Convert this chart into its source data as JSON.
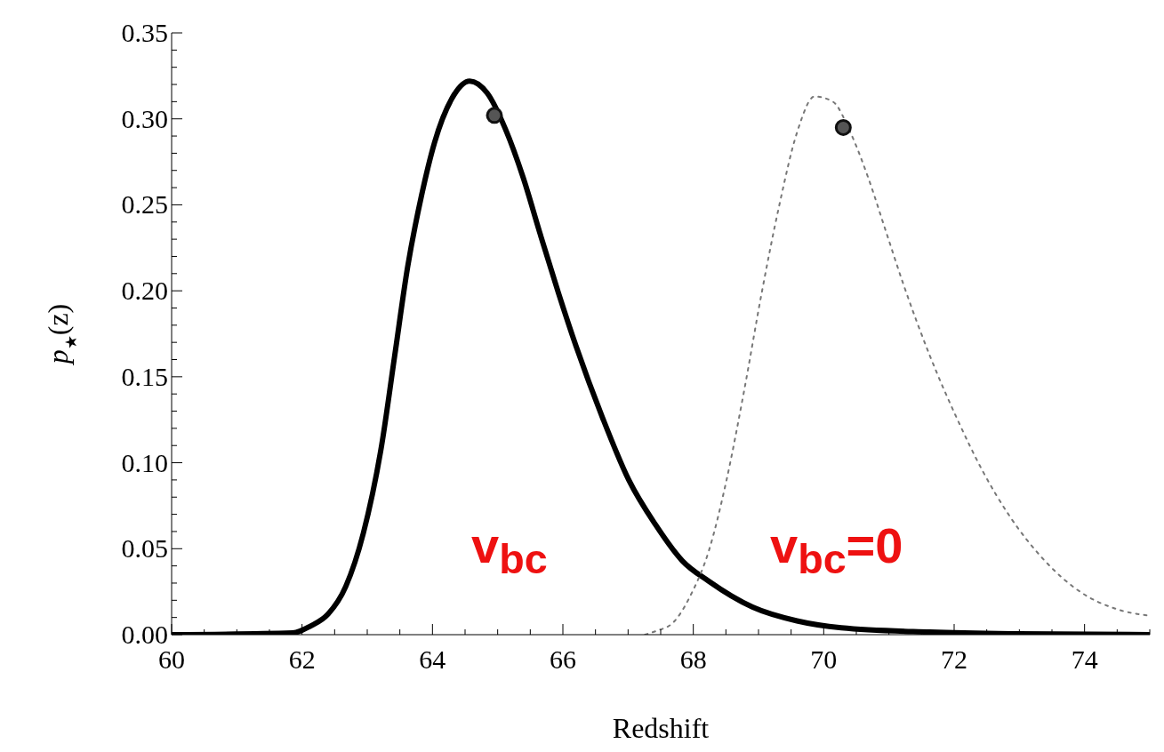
{
  "chart_data": {
    "type": "line",
    "xlabel": "Redshift",
    "ylabel": "p$_{★}$(z)",
    "xlim": [
      60,
      75
    ],
    "xticks": [
      60,
      {
        "value": 60.5,
        "label": null
      },
      {
        "value": 61,
        "label": null
      },
      {
        "value": 61.5,
        "label": null
      },
      62,
      {
        "value": 62.5,
        "label": null
      },
      {
        "value": 63,
        "label": null
      },
      {
        "value": 63.5,
        "label": null
      },
      64,
      {
        "value": 64.5,
        "label": null
      },
      {
        "value": 65,
        "label": null
      },
      {
        "value": 65.5,
        "label": null
      },
      66,
      {
        "value": 66.5,
        "label": null
      },
      {
        "value": 67,
        "label": null
      },
      {
        "value": 67.5,
        "label": null
      },
      68,
      {
        "value": 68.5,
        "label": null
      },
      {
        "value": 69,
        "label": null
      },
      {
        "value": 69.5,
        "label": null
      },
      70,
      {
        "value": 70.5,
        "label": null
      },
      {
        "value": 71,
        "label": null
      },
      {
        "value": 71.5,
        "label": null
      },
      72,
      {
        "value": 72.5,
        "label": null
      },
      {
        "value": 73,
        "label": null
      },
      {
        "value": 73.5,
        "label": null
      },
      74,
      {
        "value": 74.5,
        "label": null
      },
      {
        "value": 75,
        "label": null
      }
    ],
    "ylim": [
      0,
      0.35
    ],
    "yticks": [
      {
        "value": 0,
        "label": "0.00"
      },
      {
        "value": 0.01,
        "label": null
      },
      {
        "value": 0.02,
        "label": null
      },
      {
        "value": 0.03,
        "label": null
      },
      {
        "value": 0.04,
        "label": null
      },
      {
        "value": 0.05,
        "label": "0.05"
      },
      {
        "value": 0.06,
        "label": null
      },
      {
        "value": 0.07,
        "label": null
      },
      {
        "value": 0.08,
        "label": null
      },
      {
        "value": 0.09,
        "label": null
      },
      {
        "value": 0.1,
        "label": "0.10"
      },
      {
        "value": 0.11,
        "label": null
      },
      {
        "value": 0.12,
        "label": null
      },
      {
        "value": 0.13,
        "label": null
      },
      {
        "value": 0.14,
        "label": null
      },
      {
        "value": 0.15,
        "label": "0.15"
      },
      {
        "value": 0.16,
        "label": null
      },
      {
        "value": 0.17,
        "label": null
      },
      {
        "value": 0.18,
        "label": null
      },
      {
        "value": 0.19,
        "label": null
      },
      {
        "value": 0.2,
        "label": "0.20"
      },
      {
        "value": 0.21,
        "label": null
      },
      {
        "value": 0.22,
        "label": null
      },
      {
        "value": 0.23,
        "label": null
      },
      {
        "value": 0.24,
        "label": null
      },
      {
        "value": 0.25,
        "label": "0.25"
      },
      {
        "value": 0.26,
        "label": null
      },
      {
        "value": 0.27,
        "label": null
      },
      {
        "value": 0.28,
        "label": null
      },
      {
        "value": 0.29,
        "label": null
      },
      {
        "value": 0.3,
        "label": "0.30"
      },
      {
        "value": 0.31,
        "label": null
      },
      {
        "value": 0.32,
        "label": null
      },
      {
        "value": 0.33,
        "label": null
      },
      {
        "value": 0.34,
        "label": null
      },
      {
        "value": 0.35,
        "label": "0.35"
      }
    ],
    "grid": false,
    "legend": false,
    "marker": "none",
    "series": [
      {
        "color": "#000000",
        "line_style": "solid",
        "x": [
          60,
          61.86,
          62.13,
          62.4,
          62.67,
          62.94,
          63.22,
          63.42,
          63.62,
          63.83,
          64.03,
          64.3,
          64.57,
          64.84,
          65.12,
          65.39,
          65.66,
          65.93,
          66.2,
          66.61,
          67.01,
          67.42,
          67.83,
          68.24,
          68.91,
          69.59,
          70.27,
          71.63,
          72.99,
          75
        ],
        "values": [
          0,
          0.001,
          0.005,
          0.012,
          0.028,
          0.059,
          0.11,
          0.162,
          0.214,
          0.255,
          0.286,
          0.312,
          0.322,
          0.315,
          0.294,
          0.266,
          0.232,
          0.199,
          0.168,
          0.126,
          0.09,
          0.064,
          0.043,
          0.031,
          0.016,
          0.008,
          0.004,
          0.0015,
          0.0005,
          0
        ]
      },
      {
        "color": "#777777",
        "line_style": "dotted",
        "x": [
          67.26,
          67.42,
          67.69,
          67.96,
          68.24,
          68.51,
          68.78,
          69.05,
          69.32,
          69.59,
          69.86,
          70.14,
          70.41,
          70.68,
          70.95,
          71.22,
          71.63,
          72.04,
          72.44,
          72.85,
          73.39,
          73.93,
          74.48,
          75
        ],
        "values": [
          0,
          0.002,
          0.007,
          0.023,
          0.049,
          0.09,
          0.142,
          0.199,
          0.25,
          0.292,
          0.313,
          0.31,
          0.292,
          0.266,
          0.235,
          0.204,
          0.162,
          0.126,
          0.095,
          0.069,
          0.043,
          0.025,
          0.015,
          0.011
        ]
      },
      {
        "type": "scatter",
        "color": "#555555",
        "marker": "circle",
        "x": [
          64.95,
          70.3
        ],
        "values": [
          0.302,
          0.295
        ]
      }
    ],
    "annotations": [
      "v$_{bc}$",
      "v$_{bc}$=0"
    ]
  }
}
